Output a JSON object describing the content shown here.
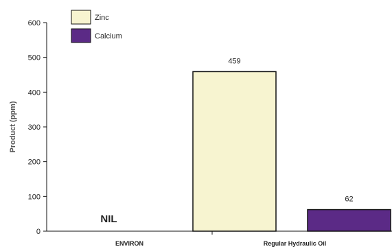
{
  "chart_data": {
    "type": "bar",
    "categories": [
      "ENVIRON",
      "Regular Hydraulic Oil"
    ],
    "series": [
      {
        "name": "Zinc",
        "values": [
          0,
          459
        ],
        "value_labels": [
          "",
          "459"
        ]
      },
      {
        "name": "Calcium",
        "values": [
          0,
          62
        ],
        "value_labels": [
          "",
          "62"
        ]
      }
    ],
    "ylabel": "Product (ppm)",
    "yticks": [
      0,
      100,
      200,
      300,
      400,
      500,
      600
    ],
    "ylim": [
      0,
      600
    ],
    "grid": false,
    "legend_position": "top-left",
    "annotation": "NIL",
    "colors": {
      "Zinc": "#f7f4d0",
      "Calcium": "#5b2a86",
      "outline": "#111111"
    }
  }
}
